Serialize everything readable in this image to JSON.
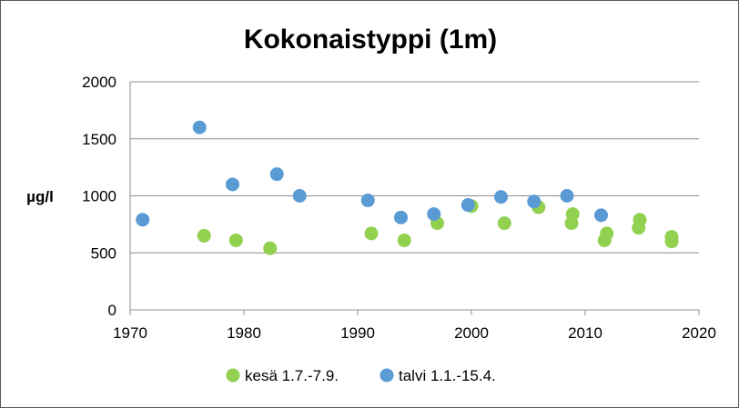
{
  "chart_data": {
    "type": "scatter",
    "title": "Kokonaistyppi (1m)",
    "xlabel": "",
    "ylabel": "µg/l",
    "xlim": [
      1970,
      2020
    ],
    "ylim": [
      0,
      2000
    ],
    "x_ticks": [
      1970,
      1980,
      1990,
      2000,
      2010,
      2020
    ],
    "y_ticks": [
      0,
      500,
      1000,
      1500,
      2000
    ],
    "grid": "horizontal",
    "legend_position": "bottom",
    "series": [
      {
        "name": "kesä 1.7.-7.9.",
        "color": "#92D050",
        "points": [
          {
            "x": 1976.5,
            "y": 650
          },
          {
            "x": 1979.3,
            "y": 610
          },
          {
            "x": 1982.3,
            "y": 540
          },
          {
            "x": 1991.2,
            "y": 670
          },
          {
            "x": 1994.1,
            "y": 610
          },
          {
            "x": 1997.0,
            "y": 760
          },
          {
            "x": 2000.0,
            "y": 910
          },
          {
            "x": 2002.9,
            "y": 760
          },
          {
            "x": 2005.9,
            "y": 900
          },
          {
            "x": 2008.8,
            "y": 760
          },
          {
            "x": 2008.9,
            "y": 840
          },
          {
            "x": 2011.7,
            "y": 610
          },
          {
            "x": 2011.9,
            "y": 670
          },
          {
            "x": 2014.7,
            "y": 720
          },
          {
            "x": 2014.8,
            "y": 790
          },
          {
            "x": 2017.6,
            "y": 600
          },
          {
            "x": 2017.6,
            "y": 640
          }
        ]
      },
      {
        "name": "talvi 1.1.-15.4.",
        "color": "#5B9BD5",
        "points": [
          {
            "x": 1971.1,
            "y": 790
          },
          {
            "x": 1976.1,
            "y": 1600
          },
          {
            "x": 1979.0,
            "y": 1100
          },
          {
            "x": 1982.9,
            "y": 1190
          },
          {
            "x": 1984.9,
            "y": 1000
          },
          {
            "x": 1990.9,
            "y": 960
          },
          {
            "x": 1993.8,
            "y": 810
          },
          {
            "x": 1996.7,
            "y": 840
          },
          {
            "x": 1999.7,
            "y": 920
          },
          {
            "x": 2002.6,
            "y": 990
          },
          {
            "x": 2005.5,
            "y": 950
          },
          {
            "x": 2008.4,
            "y": 1000
          },
          {
            "x": 2011.4,
            "y": 830
          }
        ]
      }
    ]
  }
}
